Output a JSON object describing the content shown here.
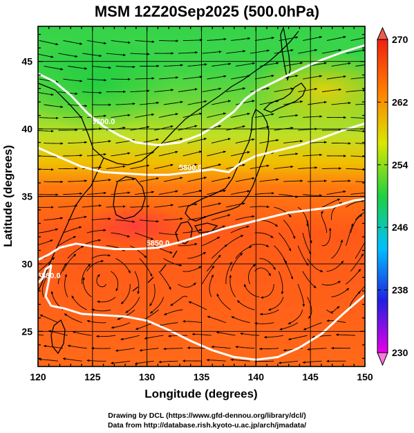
{
  "title": "MSM 12Z20Sep2025 (500.0hPa)",
  "axes": {
    "xlabel": "Longitude (degrees)",
    "ylabel": "Latitude  (degrees)",
    "xticks": [
      "120",
      "125",
      "130",
      "135",
      "140",
      "145",
      "150"
    ],
    "yticks": [
      "25",
      "30",
      "35",
      "40",
      "45"
    ],
    "xlim": [
      120,
      150
    ],
    "ylim": [
      22.4,
      47.6
    ]
  },
  "colorbar": {
    "ticks": [
      "230",
      "238",
      "246",
      "254",
      "262",
      "270"
    ],
    "range": [
      230,
      270
    ],
    "colors": [
      "#e800e8",
      "#2020e0",
      "#00c0ff",
      "#20d040",
      "#d8e800",
      "#ff8000",
      "#f02010"
    ]
  },
  "contours": {
    "labels": [
      "5700.0",
      "5800.0",
      "5850.0",
      "5880.0"
    ],
    "color": "#ffffff"
  },
  "credits": {
    "line1": "Drawing by DCL (https://www.gfd-dennou.org/library/dcl/)",
    "line2": "Data from http://database.rish.kyoto-u.ac.jp/arch/jmadata/"
  },
  "chart_data": {
    "type": "heatmap",
    "title": "MSM 12Z20Sep2025 (500.0hPa)",
    "xlabel": "Longitude (degrees)",
    "ylabel": "Latitude  (degrees)",
    "xlim": [
      120,
      150
    ],
    "ylim": [
      22.4,
      47.6
    ],
    "grid": true,
    "field": "temperature",
    "value_range": [
      230,
      270
    ],
    "regions": [
      {
        "area": "north of ~40N, west of 140E",
        "value_approx": 255
      },
      {
        "area": "~38N-41N band",
        "value_approx": 260
      },
      {
        "area": "central 25N-37N",
        "value_approx": 266
      },
      {
        "area": "Korea / western Japan max",
        "value_approx": 268
      }
    ],
    "contour_lines": [
      {
        "label": "5700.0",
        "path_lonlat": [
          [
            120,
            44.1
          ],
          [
            121.5,
            43.5
          ],
          [
            123,
            42.5
          ],
          [
            124.5,
            41.2
          ],
          [
            126,
            40.2
          ],
          [
            127.5,
            39.5
          ],
          [
            129,
            39
          ],
          [
            131,
            38.8
          ],
          [
            133,
            39
          ],
          [
            135,
            39.6
          ],
          [
            136.5,
            40.4
          ],
          [
            138,
            41.3
          ],
          [
            139,
            42.2
          ],
          [
            140,
            42.8
          ],
          [
            142,
            43.6
          ],
          [
            144,
            44.4
          ],
          [
            146,
            45.1
          ],
          [
            148,
            45.7
          ],
          [
            150,
            46.2
          ]
        ]
      },
      {
        "label": "5800.0",
        "path_lonlat": [
          [
            120,
            38.6
          ],
          [
            122,
            37.9
          ],
          [
            124,
            37.2
          ],
          [
            126,
            36.8
          ],
          [
            128,
            36.7
          ],
          [
            130,
            36.6
          ],
          [
            132,
            36.6
          ],
          [
            134,
            36.8
          ],
          [
            136,
            37
          ],
          [
            137.5,
            36.8
          ],
          [
            138.5,
            37.4
          ],
          [
            140,
            38
          ],
          [
            142,
            38.4
          ],
          [
            144,
            38.8
          ],
          [
            146,
            39.3
          ],
          [
            148,
            39.9
          ],
          [
            150,
            40.4
          ]
        ]
      },
      {
        "label": "5850.0",
        "path_lonlat": [
          [
            120,
            30.3
          ],
          [
            121,
            30.7
          ],
          [
            122,
            31.2
          ],
          [
            123.5,
            31.5
          ],
          [
            125,
            31.3
          ],
          [
            127,
            31.1
          ],
          [
            129,
            31.1
          ],
          [
            131,
            31.2
          ],
          [
            133,
            31.6
          ],
          [
            135,
            32.1
          ],
          [
            137,
            32.6
          ],
          [
            139,
            33
          ],
          [
            141,
            33.4
          ],
          [
            143,
            33.8
          ],
          [
            145,
            34
          ],
          [
            147,
            34.2
          ],
          [
            149,
            34.7
          ],
          [
            150,
            34.8
          ]
        ]
      },
      {
        "label": "5880.0",
        "path_lonlat": [
          [
            120,
            28.6
          ],
          [
            120.4,
            28.9
          ],
          [
            120.7,
            29.6
          ],
          [
            121.2,
            29.9
          ],
          [
            121,
            28.8
          ],
          [
            120.7,
            27.6
          ],
          [
            121.2,
            26.9
          ],
          [
            122.4,
            26.7
          ],
          [
            124,
            26.3
          ],
          [
            126,
            26.2
          ],
          [
            128,
            26.1
          ],
          [
            130,
            25.8
          ],
          [
            132,
            25.1
          ],
          [
            134,
            24.3
          ],
          [
            136,
            23.6
          ],
          [
            138,
            23.1
          ],
          [
            140,
            22.9
          ],
          [
            142,
            23.1
          ],
          [
            144,
            23.8
          ],
          [
            146,
            24.8
          ],
          [
            148,
            26.3
          ],
          [
            150,
            27.7
          ]
        ]
      }
    ]
  }
}
